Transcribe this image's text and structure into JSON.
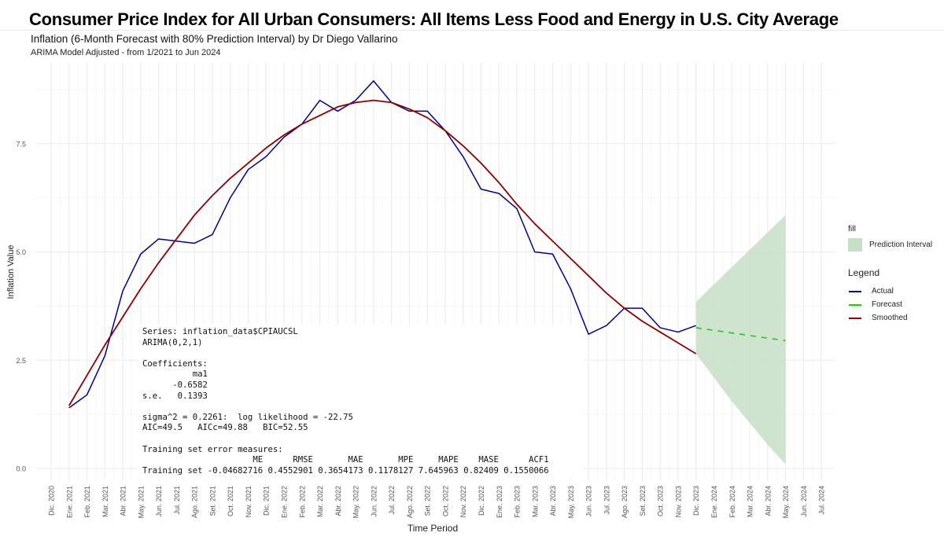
{
  "header": {
    "main_title": "Consumer Price Index for All Urban Consumers: All Items Less Food and Energy in U.S. City Average",
    "subtitle": "Inflation (6-Month Forecast with 80% Prediction Interval) by Dr Diego Vallarino",
    "caption": "ARIMA Model Adjusted - from 1/2021 to Jun 2024"
  },
  "chart_data": {
    "type": "line",
    "title": "Inflation (6-Month Forecast with 80% Prediction Interval) by Dr Diego Vallarino",
    "subtitle": "ARIMA Model Adjusted - from 1/2021 to Jun 2024",
    "xlabel": "Time Period",
    "ylabel": "Inflation Value",
    "ylim": [
      -0.1,
      9.2
    ],
    "yticks": [
      0.0,
      2.5,
      5.0,
      7.5
    ],
    "ytick_labels": [
      "0.0",
      "2.5",
      "5.0",
      "7.5"
    ],
    "grid": true,
    "x_tick_labels": [
      "Dic. 2020",
      "Ene. 2021",
      "Feb. 2021",
      "Mar. 2021",
      "Abr. 2021",
      "May. 2021",
      "Jun. 2021",
      "Jul. 2021",
      "Ago. 2021",
      "Set. 2021",
      "Oct. 2021",
      "Nov. 2021",
      "Dic. 2021",
      "Ene. 2022",
      "Feb. 2022",
      "Mar. 2022",
      "Abr. 2022",
      "May. 2022",
      "Jun. 2022",
      "Jul. 2022",
      "Ago. 2022",
      "Set. 2022",
      "Oct. 2022",
      "Nov. 2022",
      "Dic. 2022",
      "Ene. 2023",
      "Feb. 2023",
      "Mar. 2023",
      "Abr. 2023",
      "May. 2023",
      "Jun. 2023",
      "Jul. 2023",
      "Ago. 2023",
      "Set. 2023",
      "Oct. 2023",
      "Nov. 2023",
      "Dic. 2023",
      "Ene. 2024",
      "Feb. 2024",
      "Mar. 2024",
      "Abr. 2024",
      "May. 2024",
      "Jun. 2024",
      "Jul. 2024"
    ],
    "series": [
      {
        "name": "Actual",
        "color": "#00008b",
        "start_index": 1,
        "values": [
          1.4,
          1.7,
          2.6,
          4.1,
          4.95,
          5.3,
          5.25,
          5.2,
          5.4,
          6.25,
          6.9,
          7.2,
          7.65,
          7.95,
          8.5,
          8.25,
          8.5,
          8.95,
          8.45,
          8.25,
          8.25,
          7.8,
          7.2,
          6.45,
          6.35,
          6.0,
          5.0,
          4.95,
          4.15,
          3.1,
          3.3,
          3.7,
          3.7,
          3.25,
          3.15,
          3.3
        ]
      },
      {
        "name": "Smoothed",
        "color": "#8b0000",
        "start_index": 1,
        "values": [
          1.45,
          2.15,
          2.85,
          3.5,
          4.15,
          4.75,
          5.3,
          5.85,
          6.3,
          6.7,
          7.05,
          7.4,
          7.7,
          7.95,
          8.15,
          8.35,
          8.45,
          8.5,
          8.45,
          8.3,
          8.1,
          7.8,
          7.45,
          7.05,
          6.6,
          6.1,
          5.65,
          5.25,
          4.85,
          4.45,
          4.05,
          3.7,
          3.4,
          3.15,
          2.9,
          2.65
        ]
      },
      {
        "name": "Forecast",
        "color": "#00cc00",
        "style": "dashed",
        "start_index": 36,
        "values": [
          3.25,
          3.19,
          3.13,
          3.07,
          3.01,
          2.95
        ]
      }
    ],
    "prediction_interval": {
      "name": "Prediction Interval",
      "level": "80%",
      "color": "#c6dfc6",
      "start_index": 36,
      "lower": [
        2.65,
        2.1,
        1.55,
        1.05,
        0.55,
        0.1
      ],
      "upper": [
        3.85,
        4.25,
        4.65,
        5.05,
        5.45,
        5.85
      ]
    },
    "legend": {
      "placement": "right",
      "fill_title": "fill",
      "fill_items": [
        "Prediction Interval"
      ],
      "line_title": "Legend",
      "line_items": [
        {
          "label": "Actual",
          "color": "#00008b"
        },
        {
          "label": "Forecast",
          "color": "#00cc00"
        },
        {
          "label": "Smoothed",
          "color": "#8b0000"
        }
      ]
    },
    "annotation": {
      "lines": [
        "Series: inflation_data$CPIAUCSL",
        "ARIMA(0,2,1)",
        "",
        "Coefficients:",
        "          ma1",
        "      -0.6582",
        "s.e.   0.1393",
        "",
        "sigma^2 = 0.2261:  log likelihood = -22.75",
        "AIC=49.5   AICc=49.88   BIC=52.55",
        "",
        "Training set error measures:",
        "                      ME      RMSE       MAE       MPE     MAPE    MASE      ACF1",
        "Training set -0.04682716 0.4552901 0.3654173 0.1178127 7.645963 0.82409 0.1550066"
      ]
    }
  }
}
